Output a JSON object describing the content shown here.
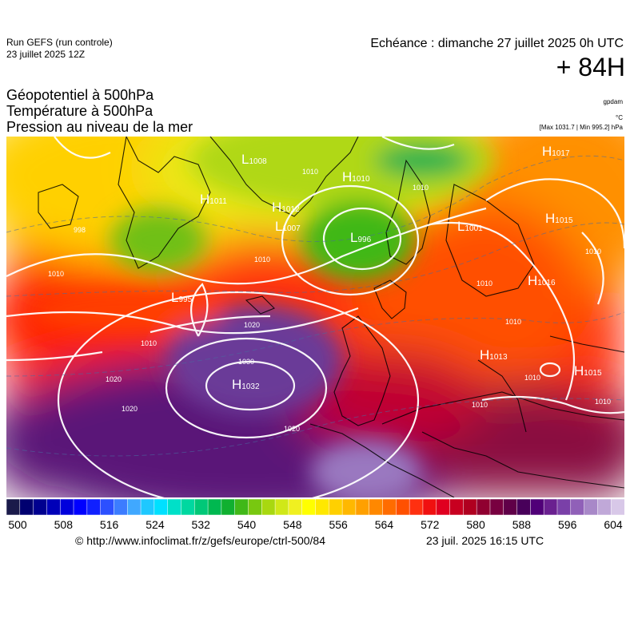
{
  "header": {
    "run_title": "Run GEFS (run controle)",
    "run_date": "23 juillet 2025 12Z",
    "echeance": "Echéance : dimanche 27 juillet 2025 0h UTC",
    "lead_time": "+ 84H"
  },
  "titles": {
    "line1": "Géopotentiel à 500hPa",
    "line2": "Température à 500hPa",
    "line3": "Pression au niveau de la mer"
  },
  "units": {
    "geopotential": "gpdam",
    "temperature": "°C",
    "pressure": "[Max 1031.7 | Min 995.2] hPa"
  },
  "pressure_centers": [
    {
      "type": "H",
      "value": "1017"
    },
    {
      "type": "L",
      "value": "1008"
    },
    {
      "type": "H",
      "value": "1010"
    },
    {
      "type": "H",
      "value": "1011"
    },
    {
      "type": "H",
      "value": "1012"
    },
    {
      "type": "L",
      "value": "1007"
    },
    {
      "type": "L",
      "value": "996"
    },
    {
      "type": "L",
      "value": "1001"
    },
    {
      "type": "H",
      "value": "1015"
    },
    {
      "type": "H",
      "value": "1016"
    },
    {
      "type": "L",
      "value": "995"
    },
    {
      "type": "H",
      "value": "1013"
    },
    {
      "type": "H",
      "value": "1015"
    },
    {
      "type": "H",
      "value": "1032"
    }
  ],
  "isobar_labels": [
    "998",
    "1010",
    "1010",
    "1010",
    "1010",
    "1020",
    "1030",
    "1020",
    "1020",
    "1010",
    "1010",
    "1010",
    "1010",
    "1010",
    "1010",
    "1010",
    "1020"
  ],
  "colorbar": {
    "colors": [
      "#1a1a4a",
      "#000070",
      "#00008f",
      "#0000b8",
      "#0000dc",
      "#0000ff",
      "#1020ff",
      "#2c50ff",
      "#3c7cff",
      "#40a8ff",
      "#1ec8ff",
      "#00e0ff",
      "#00e0c8",
      "#00d8a0",
      "#00c878",
      "#00b850",
      "#10b030",
      "#40b818",
      "#78c810",
      "#a8d810",
      "#d0e818",
      "#f0f020",
      "#ffff00",
      "#ffe800",
      "#ffd000",
      "#ffb800",
      "#ffa000",
      "#ff8800",
      "#ff6c00",
      "#ff5000",
      "#ff3010",
      "#f01010",
      "#e00020",
      "#c80020",
      "#b00020",
      "#900030",
      "#780040",
      "#600048",
      "#48005a",
      "#500078",
      "#6a2090",
      "#7a40a8",
      "#9060b8",
      "#a888c8",
      "#c0a8d8",
      "#d8c8e8"
    ],
    "ticks": [
      "500",
      "508",
      "516",
      "524",
      "532",
      "540",
      "548",
      "556",
      "564",
      "572",
      "580",
      "588",
      "596",
      "604"
    ]
  },
  "footer": {
    "credit": "© http://www.infoclimat.fr/z/gefs/europe/ctrl-500/84",
    "timestamp": "23 juil. 2025 16:15 UTC"
  }
}
